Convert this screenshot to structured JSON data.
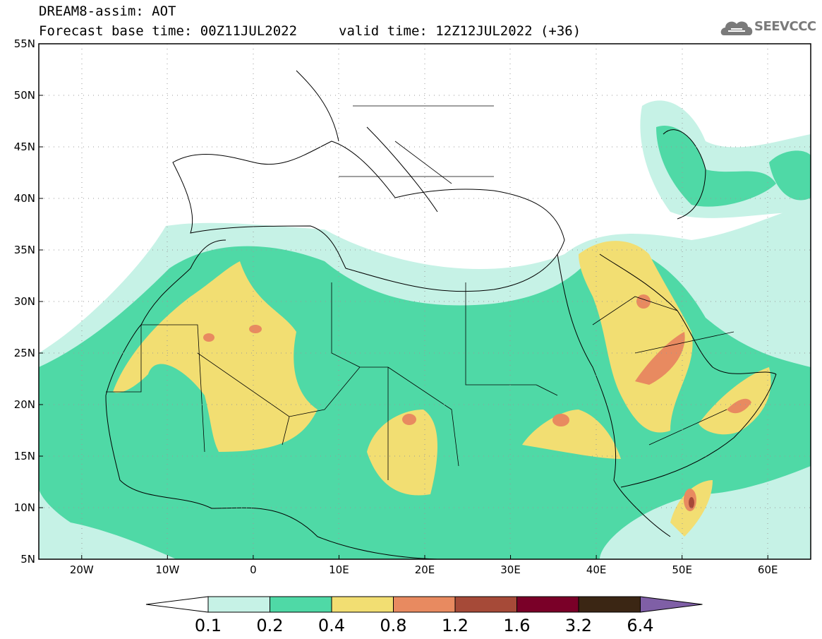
{
  "header": {
    "title": "DREAM8-assim: AOT",
    "base_time": "Forecast base time: 00Z11JUL2022",
    "valid_time": "valid time: 12Z12JUL2022 (+36)",
    "logo_text": "SEEVCCC"
  },
  "map": {
    "lat_labels": [
      "55N",
      "50N",
      "45N",
      "40N",
      "35N",
      "30N",
      "25N",
      "20N",
      "15N",
      "10N",
      "5N"
    ],
    "lon_labels": [
      "20W",
      "10W",
      "0",
      "10E",
      "20E",
      "30E",
      "40E",
      "50E",
      "60E"
    ],
    "lon_range": [
      -25,
      65
    ],
    "lat_range": [
      5,
      55
    ]
  },
  "colorbar": {
    "labels": [
      "0.1",
      "0.2",
      "0.4",
      "0.8",
      "1.2",
      "1.6",
      "3.2",
      "6.4"
    ],
    "colors": [
      "#c6f2e6",
      "#4fd9a6",
      "#f2de72",
      "#e88a60",
      "#a64a38",
      "#7a0028",
      "#3b2614",
      "#7f5fa6"
    ]
  },
  "colors": {
    "level1": "#c6f2e6",
    "level2": "#4fd9a6",
    "level3": "#f2de72",
    "level4": "#e88a60",
    "level5": "#a64a38"
  }
}
